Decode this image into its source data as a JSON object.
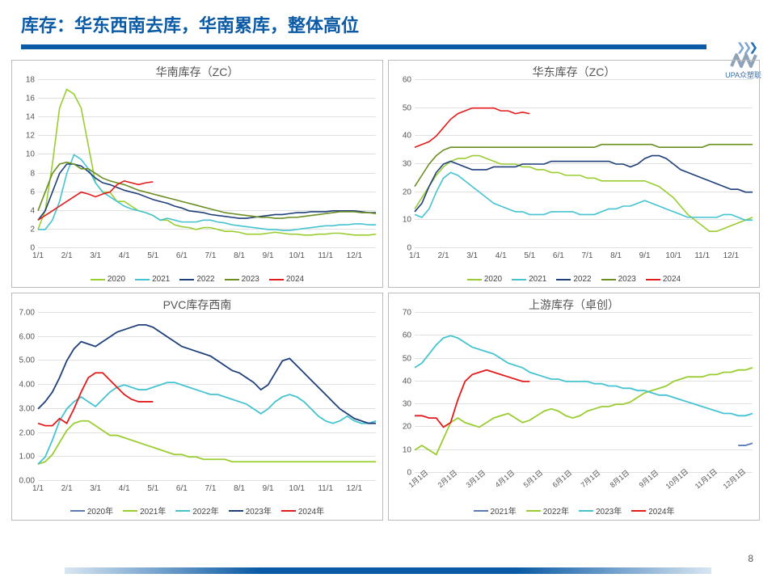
{
  "title": {
    "text": "库存：华东西南去库，华南累库，整体高位",
    "color": "#0a5aa5"
  },
  "logo": {
    "text": "UPA众塑联",
    "color": "#8ea3b8"
  },
  "page_number": 8,
  "x_months": [
    "1/1",
    "2/1",
    "3/1",
    "4/1",
    "5/1",
    "6/1",
    "7/1",
    "8/1",
    "9/1",
    "10/1",
    "11/1",
    "12/1"
  ],
  "x_months_ri": [
    "1月1日",
    "2月1日",
    "3月1日",
    "4月1日",
    "5月1日",
    "6月1日",
    "7月1日",
    "8月1日",
    "9月1日",
    "10月1日",
    "11月1日",
    "12月1日"
  ],
  "panels": [
    {
      "title": "华南库存（ZC）",
      "type": "line",
      "ylim": [
        0,
        18
      ],
      "ytick_step": 2,
      "grid": true,
      "x_key": "x_months",
      "x_rot": false,
      "line_width": 1.6,
      "background": "#ffffff",
      "grid_color": "#e0e0e0",
      "title_fontsize": 14,
      "label_fontsize": 10,
      "series": [
        {
          "name": "2020",
          "color": "#9acd32",
          "values": [
            2,
            4,
            9,
            15,
            17,
            16.5,
            15,
            11,
            7,
            6,
            6,
            5,
            5,
            4.5,
            4,
            3.8,
            3.5,
            3,
            3,
            2.5,
            2.3,
            2.2,
            2,
            2.2,
            2.2,
            2,
            1.8,
            1.8,
            1.7,
            1.5,
            1.5,
            1.5,
            1.6,
            1.7,
            1.6,
            1.5,
            1.5,
            1.4,
            1.4,
            1.5,
            1.5,
            1.6,
            1.6,
            1.5,
            1.4,
            1.4,
            1.4,
            1.5
          ]
        },
        {
          "name": "2021",
          "color": "#45c3d1",
          "values": [
            2,
            2,
            3,
            5,
            8,
            10,
            9.5,
            8.5,
            7,
            6,
            5.5,
            5,
            4.5,
            4.2,
            4,
            3.8,
            3.5,
            3,
            3.2,
            3,
            2.8,
            2.8,
            2.8,
            3,
            3,
            2.8,
            2.7,
            2.5,
            2.4,
            2.3,
            2.2,
            2.1,
            2,
            2,
            1.9,
            1.9,
            2,
            2.1,
            2.2,
            2.3,
            2.4,
            2.4,
            2.5,
            2.5,
            2.6,
            2.6,
            2.5,
            2.5
          ]
        },
        {
          "name": "2022",
          "color": "#1f3f7a",
          "values": [
            3,
            4,
            6,
            8,
            9,
            9,
            8.8,
            8.2,
            7.5,
            7,
            6.8,
            6.5,
            6.2,
            6,
            5.8,
            5.5,
            5.2,
            5,
            4.8,
            4.5,
            4.3,
            4,
            3.9,
            3.8,
            3.6,
            3.5,
            3.4,
            3.3,
            3.2,
            3.2,
            3.3,
            3.4,
            3.5,
            3.6,
            3.6,
            3.7,
            3.8,
            3.8,
            3.9,
            3.9,
            3.9,
            4,
            4,
            4,
            4,
            3.9,
            3.8,
            3.8
          ]
        },
        {
          "name": "2023",
          "color": "#6b8e23",
          "values": [
            4,
            6,
            8,
            9,
            9.2,
            9,
            8.5,
            8.5,
            8,
            7.5,
            7.2,
            7,
            6.8,
            6.5,
            6.2,
            6,
            5.8,
            5.6,
            5.4,
            5.2,
            5,
            4.8,
            4.6,
            4.4,
            4.2,
            4,
            3.8,
            3.7,
            3.6,
            3.5,
            3.4,
            3.3,
            3.3,
            3.2,
            3.2,
            3.3,
            3.3,
            3.4,
            3.5,
            3.6,
            3.7,
            3.8,
            3.9,
            3.9,
            3.9,
            3.8,
            3.8,
            3.7
          ]
        },
        {
          "name": "2024",
          "color": "#e31b1b",
          "values": [
            3,
            3.5,
            4,
            4.5,
            5,
            5.5,
            6,
            5.8,
            5.5,
            5.8,
            6,
            6.8,
            7.2,
            7,
            6.8,
            7,
            7.1
          ]
        }
      ]
    },
    {
      "title": "华东库存（ZC）",
      "type": "line",
      "ylim": [
        0,
        60
      ],
      "ytick_step": 10,
      "grid": true,
      "x_key": "x_months",
      "x_rot": false,
      "line_width": 1.6,
      "background": "#ffffff",
      "grid_color": "#e0e0e0",
      "title_fontsize": 14,
      "label_fontsize": 10,
      "series": [
        {
          "name": "2020",
          "color": "#9acd32",
          "values": [
            14,
            18,
            22,
            26,
            29,
            31,
            32,
            32,
            33,
            33,
            32,
            31,
            30,
            30,
            30,
            29,
            29,
            28,
            28,
            27,
            27,
            26,
            26,
            26,
            25,
            25,
            24,
            24,
            24,
            24,
            24,
            24,
            24,
            23,
            22,
            20,
            18,
            15,
            12,
            10,
            8,
            6,
            6,
            7,
            8,
            9,
            10,
            11
          ]
        },
        {
          "name": "2021",
          "color": "#45c3d1",
          "values": [
            12,
            11,
            14,
            20,
            25,
            27,
            26,
            24,
            22,
            20,
            18,
            16,
            15,
            14,
            13,
            13,
            12,
            12,
            12,
            13,
            13,
            13,
            13,
            12,
            12,
            12,
            13,
            14,
            14,
            15,
            15,
            16,
            17,
            16,
            15,
            14,
            13,
            12,
            11,
            11,
            11,
            11,
            11,
            12,
            12,
            11,
            10,
            10
          ]
        },
        {
          "name": "2022",
          "color": "#1f3f7a",
          "values": [
            13,
            16,
            22,
            27,
            30,
            31,
            30,
            29,
            28,
            28,
            28,
            29,
            29,
            29,
            29,
            30,
            30,
            30,
            30,
            31,
            31,
            31,
            31,
            31,
            31,
            31,
            31,
            31,
            30,
            30,
            29,
            30,
            32,
            33,
            33,
            32,
            30,
            28,
            27,
            26,
            25,
            24,
            23,
            22,
            21,
            21,
            20,
            20
          ]
        },
        {
          "name": "2023",
          "color": "#6b8e23",
          "values": [
            22,
            26,
            30,
            33,
            35,
            36,
            36,
            36,
            36,
            36,
            36,
            36,
            36,
            36,
            36,
            36,
            36,
            36,
            36,
            36,
            36,
            36,
            36,
            36,
            36,
            36,
            37,
            37,
            37,
            37,
            37,
            37,
            37,
            37,
            36,
            36,
            36,
            36,
            36,
            36,
            36,
            37,
            37,
            37,
            37,
            37,
            37,
            37
          ]
        },
        {
          "name": "2024",
          "color": "#e31b1b",
          "values": [
            36,
            37,
            38,
            40,
            43,
            46,
            48,
            49,
            50,
            50,
            50,
            50,
            49,
            49,
            48,
            48.5,
            48
          ]
        }
      ]
    },
    {
      "title": "PVC库存西南",
      "type": "line",
      "ylim": [
        0,
        7
      ],
      "ytick_step": 1,
      "y_decimals": 2,
      "grid": true,
      "x_key": "x_months",
      "x_rot": false,
      "line_width": 1.8,
      "background": "#ffffff",
      "grid_color": "#e0e0e0",
      "title_fontsize": 14,
      "label_fontsize": 10,
      "series": [
        {
          "name": "2020年",
          "color": "#5b7bb8",
          "values": []
        },
        {
          "name": "2021年",
          "color": "#9acd32",
          "values": [
            0.7,
            0.8,
            1.1,
            1.6,
            2.1,
            2.4,
            2.5,
            2.5,
            2.3,
            2.1,
            1.9,
            1.9,
            1.8,
            1.7,
            1.6,
            1.5,
            1.4,
            1.3,
            1.2,
            1.1,
            1.1,
            1,
            1,
            0.9,
            0.9,
            0.9,
            0.9,
            0.8,
            0.8,
            0.8,
            0.8,
            0.8,
            0.8,
            0.8,
            0.8,
            0.8,
            0.8,
            0.8,
            0.8,
            0.8,
            0.8,
            0.8,
            0.8,
            0.8,
            0.8,
            0.8,
            0.8,
            0.8
          ]
        },
        {
          "name": "2022年",
          "color": "#45c3d1",
          "values": [
            0.7,
            1,
            1.7,
            2.5,
            3,
            3.3,
            3.5,
            3.3,
            3.1,
            3.4,
            3.7,
            3.9,
            4,
            3.9,
            3.8,
            3.8,
            3.9,
            4.0,
            4.1,
            4.1,
            4.0,
            3.9,
            3.8,
            3.7,
            3.6,
            3.6,
            3.5,
            3.4,
            3.3,
            3.2,
            3.0,
            2.8,
            3.0,
            3.3,
            3.5,
            3.6,
            3.5,
            3.3,
            3.0,
            2.7,
            2.5,
            2.4,
            2.5,
            2.7,
            2.5,
            2.4,
            2.4,
            2.5
          ]
        },
        {
          "name": "2023年",
          "color": "#1f3f7a",
          "values": [
            3.0,
            3.3,
            3.7,
            4.3,
            5.0,
            5.5,
            5.8,
            5.7,
            5.6,
            5.8,
            6.0,
            6.2,
            6.3,
            6.4,
            6.5,
            6.5,
            6.4,
            6.2,
            6.0,
            5.8,
            5.6,
            5.5,
            5.4,
            5.3,
            5.2,
            5.0,
            4.8,
            4.6,
            4.5,
            4.3,
            4.1,
            3.8,
            4.0,
            4.5,
            5.0,
            5.1,
            4.8,
            4.5,
            4.2,
            3.9,
            3.6,
            3.3,
            3.0,
            2.8,
            2.6,
            2.5,
            2.4,
            2.4
          ]
        },
        {
          "name": "2024年",
          "color": "#e31b1b",
          "values": [
            2.4,
            2.3,
            2.3,
            2.6,
            2.4,
            3.0,
            3.7,
            4.3,
            4.5,
            4.5,
            4.2,
            3.9,
            3.6,
            3.4,
            3.3,
            3.3,
            3.3
          ]
        }
      ]
    },
    {
      "title": "上游库存（卓创）",
      "type": "line",
      "ylim": [
        0,
        70
      ],
      "ytick_step": 10,
      "grid": true,
      "x_key": "x_months_ri",
      "x_rot": true,
      "line_width": 1.8,
      "background": "#ffffff",
      "grid_color": "#e0e0e0",
      "title_fontsize": 14,
      "label_fontsize": 10,
      "series": [
        {
          "name": "2021年",
          "color": "#5b7bb8",
          "values": [
            null,
            null,
            null,
            null,
            null,
            null,
            null,
            null,
            null,
            null,
            null,
            null,
            null,
            null,
            null,
            null,
            null,
            null,
            null,
            null,
            null,
            null,
            null,
            null,
            null,
            null,
            null,
            null,
            null,
            null,
            null,
            null,
            null,
            null,
            null,
            null,
            null,
            null,
            null,
            null,
            null,
            null,
            null,
            null,
            null,
            12,
            12,
            13
          ]
        },
        {
          "name": "2022年",
          "color": "#9acd32",
          "values": [
            10,
            12,
            10,
            8,
            15,
            22,
            24,
            22,
            21,
            20,
            22,
            24,
            25,
            26,
            24,
            22,
            23,
            25,
            27,
            28,
            27,
            25,
            24,
            25,
            27,
            28,
            29,
            29,
            30,
            30,
            31,
            33,
            35,
            36,
            37,
            38,
            40,
            41,
            42,
            42,
            42,
            43,
            43,
            44,
            44,
            45,
            45,
            46
          ]
        },
        {
          "name": "2023年",
          "color": "#45c3d1",
          "values": [
            46,
            48,
            52,
            56,
            59,
            60,
            59,
            57,
            55,
            54,
            53,
            52,
            50,
            48,
            47,
            46,
            44,
            43,
            42,
            41,
            41,
            40,
            40,
            40,
            40,
            39,
            39,
            38,
            38,
            37,
            37,
            36,
            36,
            35,
            34,
            34,
            33,
            32,
            31,
            30,
            29,
            28,
            27,
            26,
            26,
            25,
            25,
            26
          ]
        },
        {
          "name": "2024年",
          "color": "#e31b1b",
          "values": [
            25,
            25,
            24,
            24,
            20,
            22,
            32,
            40,
            43,
            44,
            45,
            44,
            43,
            42,
            41,
            40,
            40
          ]
        }
      ]
    }
  ]
}
